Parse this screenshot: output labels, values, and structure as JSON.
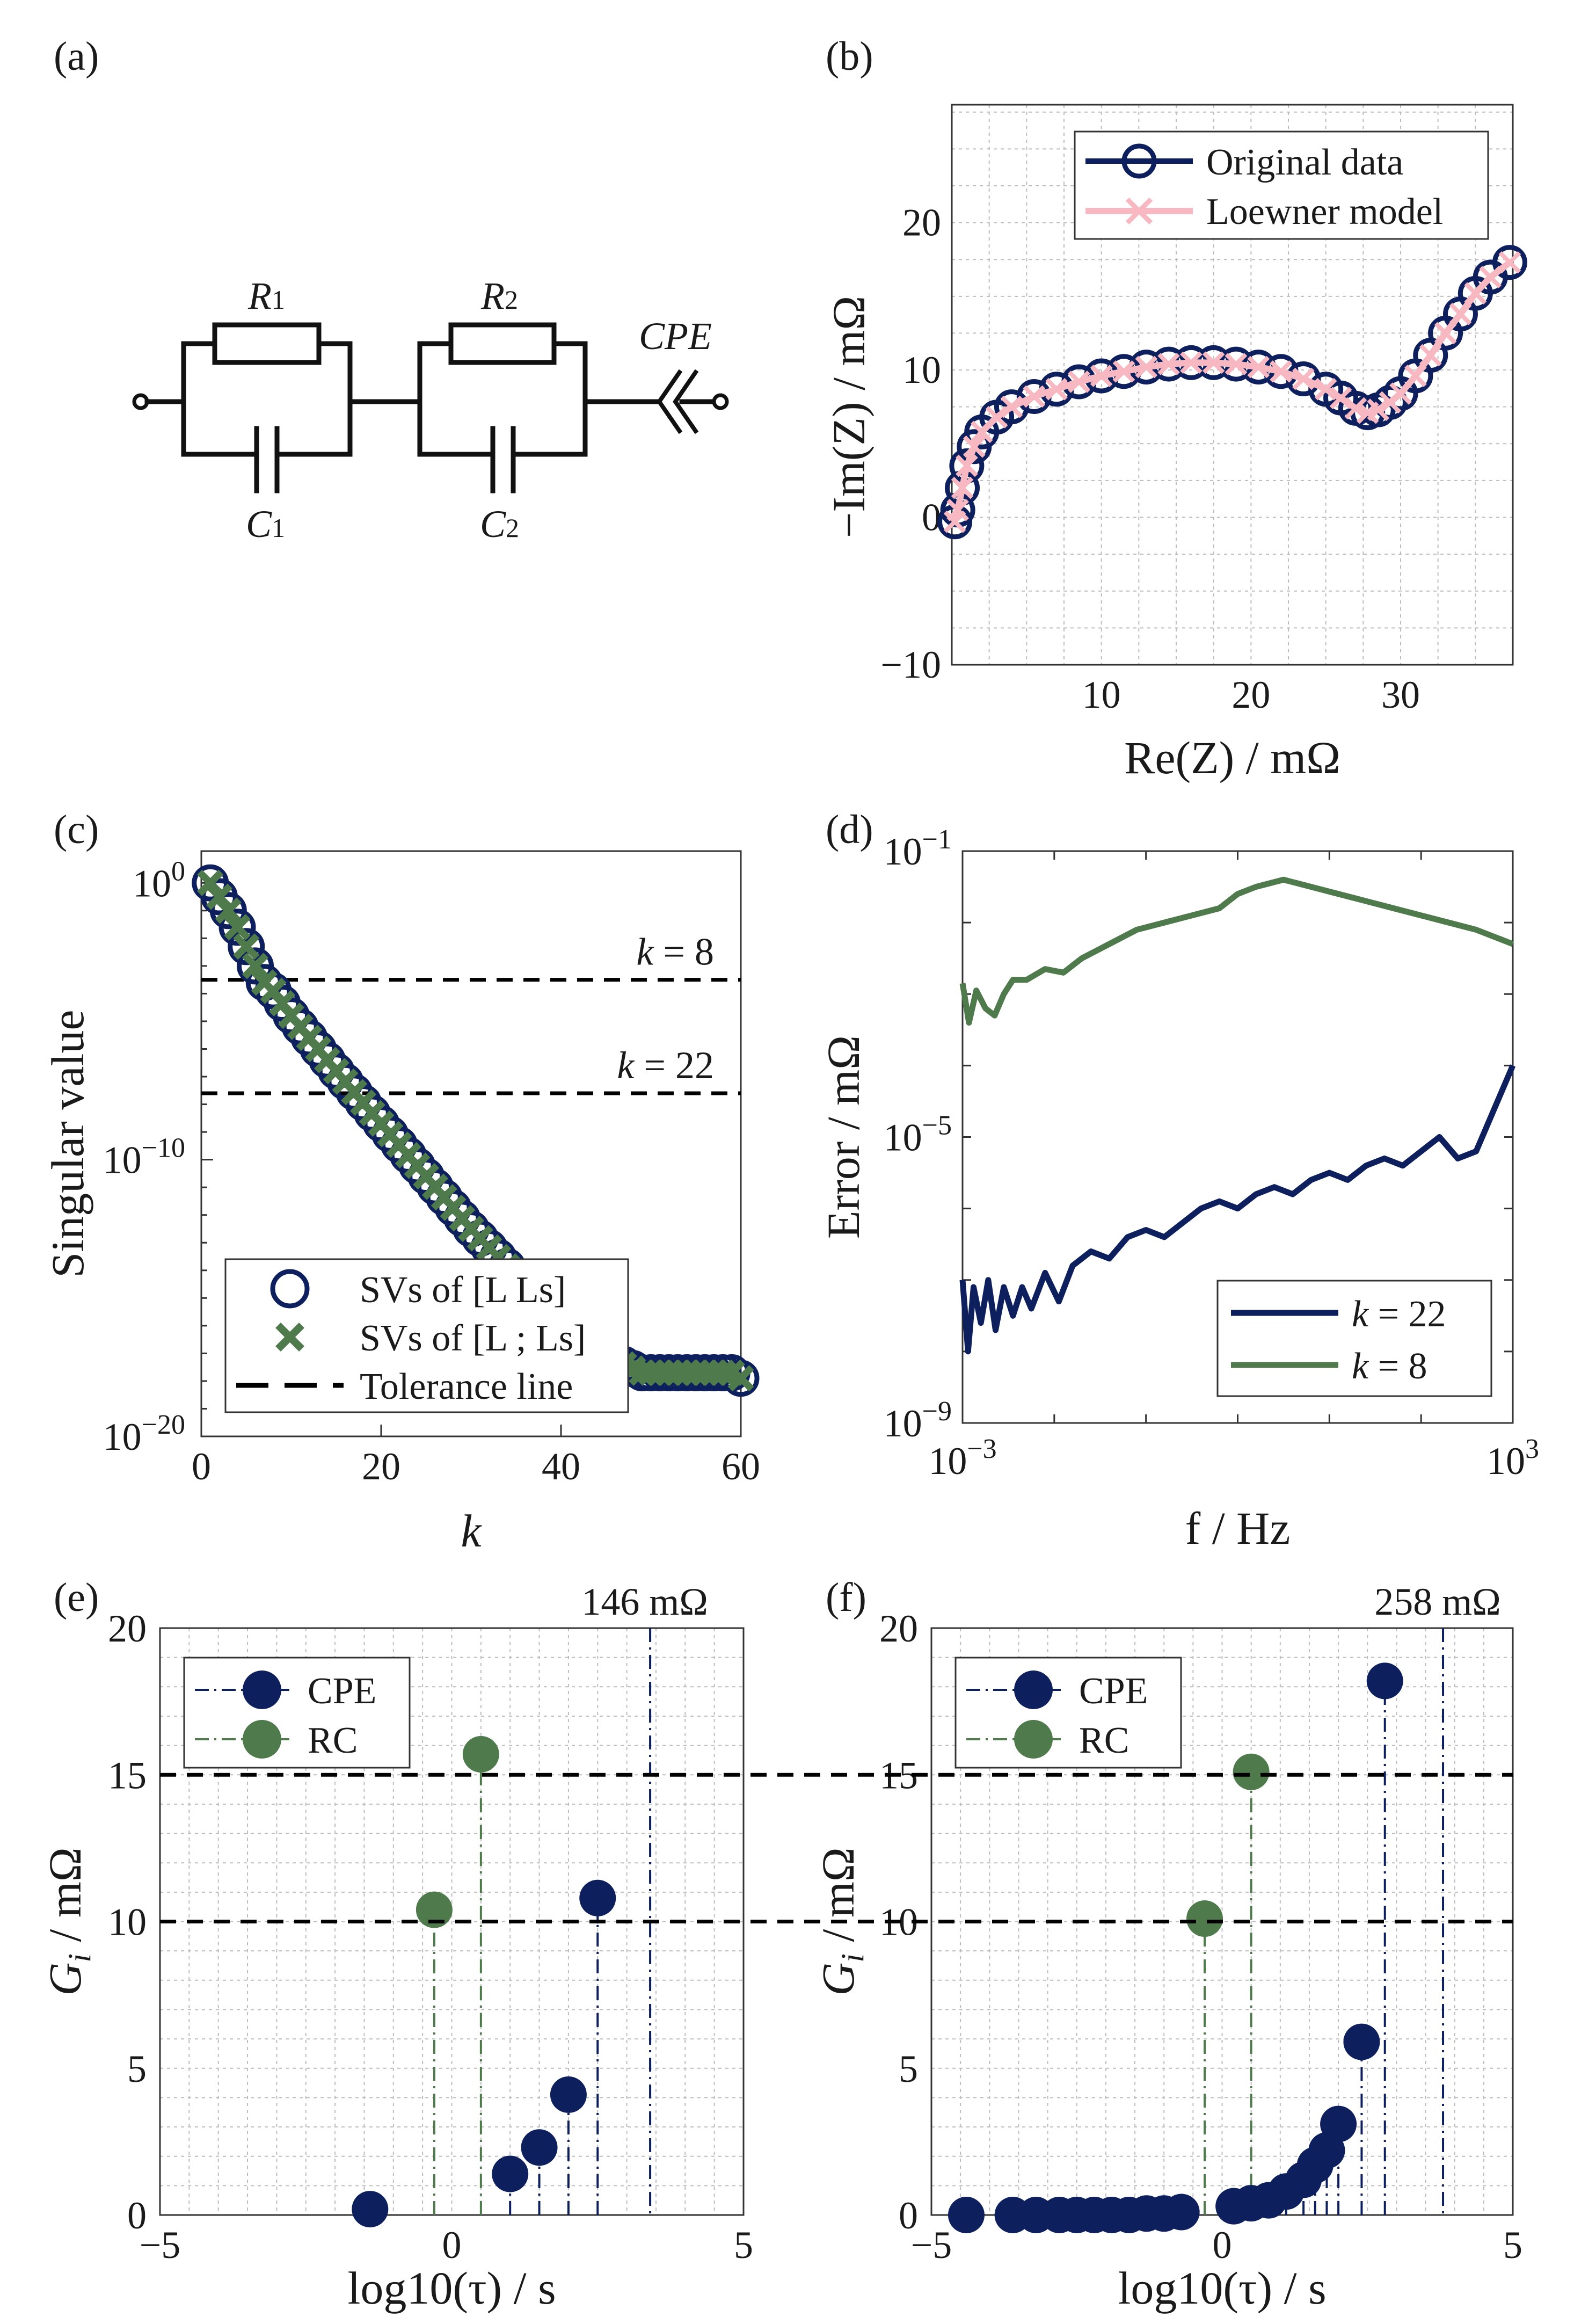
{
  "figure": {
    "panel_labels": [
      "(a)",
      "(b)",
      "(c)",
      "(d)",
      "(e)",
      "(f)"
    ],
    "circuit": {
      "labels": {
        "r1": "R",
        "r1_sub": "1",
        "r2": "R",
        "r2_sub": "2",
        "c1": "C",
        "c1_sub": "1",
        "c2": "C",
        "c2_sub": "2",
        "cpe": "CPE"
      }
    }
  },
  "chart_data": [
    {
      "panel": "(b)",
      "type": "line",
      "xlabel": "Re(Z) / mΩ",
      "ylabel": "−Im(Z) / mΩ",
      "xlim": [
        0,
        37.5
      ],
      "ylim": [
        -10,
        28
      ],
      "xticks": [
        10,
        20,
        30
      ],
      "yticks": [
        -10,
        0,
        10,
        20
      ],
      "grid": true,
      "legend": "top-right",
      "series": [
        {
          "name": "Original data",
          "color": "#0d1f5c",
          "marker": "circle",
          "x": [
            0.2,
            0.4,
            0.7,
            1.0,
            1.5,
            2.0,
            3.0,
            4.0,
            5.5,
            7.0,
            8.5,
            10.0,
            11.5,
            13.0,
            14.5,
            16.0,
            17.5,
            19.0,
            20.5,
            22.0,
            23.5,
            25.0,
            26.0,
            27.0,
            27.8,
            28.5,
            29.3,
            30.0,
            31.0,
            32.0,
            33.0,
            34.0,
            35.0,
            36.0,
            37.3
          ],
          "y": [
            -0.3,
            0.5,
            2.0,
            3.5,
            4.8,
            5.8,
            6.8,
            7.5,
            8.2,
            8.7,
            9.2,
            9.6,
            9.9,
            10.2,
            10.4,
            10.5,
            10.5,
            10.4,
            10.2,
            9.9,
            9.4,
            8.7,
            8.1,
            7.4,
            7.1,
            7.3,
            7.8,
            8.4,
            9.6,
            11.0,
            12.5,
            13.8,
            15.2,
            16.3,
            17.3
          ]
        },
        {
          "name": "Loewner model",
          "color": "#f7b8c2",
          "marker": "x",
          "x": [
            0.2,
            0.4,
            0.7,
            1.0,
            1.5,
            2.0,
            3.0,
            4.0,
            5.5,
            7.0,
            8.5,
            10.0,
            11.5,
            13.0,
            14.5,
            16.0,
            17.5,
            19.0,
            20.5,
            22.0,
            23.5,
            25.0,
            26.0,
            27.0,
            27.8,
            28.5,
            29.3,
            30.0,
            31.0,
            32.0,
            33.0,
            34.0,
            35.0,
            36.0,
            37.3
          ],
          "y": [
            -0.3,
            0.5,
            2.0,
            3.5,
            4.8,
            5.8,
            6.8,
            7.5,
            8.2,
            8.7,
            9.2,
            9.6,
            9.9,
            10.2,
            10.4,
            10.5,
            10.5,
            10.4,
            10.2,
            9.9,
            9.4,
            8.7,
            8.1,
            7.4,
            7.1,
            7.3,
            7.8,
            8.4,
            9.6,
            11.0,
            12.5,
            13.8,
            15.2,
            16.3,
            17.3
          ]
        }
      ]
    },
    {
      "panel": "(c)",
      "type": "scatter",
      "xlabel": "k",
      "ylabel": "Singular value",
      "xlim": [
        0,
        60
      ],
      "ylim_log10": [
        -20,
        1
      ],
      "yscale": "log",
      "xticks": [
        0,
        20,
        40,
        60
      ],
      "yticks": [
        "10^0",
        "10^-10",
        "10^-20"
      ],
      "legend": "bottom-left",
      "series": [
        {
          "name": "SVs of [L Ls]",
          "color": "#0d1f5c",
          "marker": "circle",
          "k_from": 1,
          "k_to": 60,
          "log10_points": [
            [
              1,
              0
            ],
            [
              2,
              -0.5
            ],
            [
              3,
              -1.0
            ],
            [
              4,
              -1.6
            ],
            [
              5,
              -2.3
            ],
            [
              6,
              -3.0
            ],
            [
              7,
              -3.6
            ],
            [
              8,
              -3.9
            ],
            [
              10,
              -4.8
            ],
            [
              15,
              -6.8
            ],
            [
              20,
              -8.7
            ],
            [
              25,
              -10.6
            ],
            [
              30,
              -12.5
            ],
            [
              35,
              -14.2
            ],
            [
              40,
              -15.8
            ],
            [
              45,
              -17.1
            ],
            [
              49,
              -17.7
            ],
            [
              59,
              -17.7
            ],
            [
              60,
              -17.9
            ]
          ]
        },
        {
          "name": "SVs of [L ; Ls]",
          "color": "#4e7a4c",
          "marker": "x",
          "k_from": 1,
          "k_to": 60,
          "log10_points": [
            [
              1,
              0
            ],
            [
              2,
              -0.5
            ],
            [
              3,
              -1.0
            ],
            [
              4,
              -1.6
            ],
            [
              5,
              -2.3
            ],
            [
              6,
              -3.0
            ],
            [
              7,
              -3.6
            ],
            [
              8,
              -3.9
            ],
            [
              10,
              -4.8
            ],
            [
              15,
              -6.8
            ],
            [
              20,
              -8.7
            ],
            [
              25,
              -10.6
            ],
            [
              30,
              -12.5
            ],
            [
              35,
              -14.2
            ],
            [
              40,
              -15.8
            ],
            [
              45,
              -17.1
            ],
            [
              49,
              -17.7
            ],
            [
              59,
              -17.7
            ],
            [
              60,
              -17.9
            ]
          ]
        },
        {
          "name": "Tolerance line",
          "color": "#000000",
          "style": "dashed",
          "log10_levels": [
            -3.5,
            -7.6
          ]
        }
      ],
      "annotations": [
        {
          "text": "k = 8",
          "italic_part": "k",
          "rest": " = 8"
        },
        {
          "text": "k = 22",
          "italic_part": "k",
          "rest": " = 22"
        }
      ]
    },
    {
      "panel": "(d)",
      "type": "line",
      "xlabel": "f / Hz",
      "ylabel": "Error / mΩ",
      "xscale": "log",
      "yscale": "log",
      "xlim_log10": [
        -3,
        3
      ],
      "ylim_log10": [
        -9,
        -1
      ],
      "xtick_labels": [
        {
          "base": "10",
          "exp": "−3"
        },
        {
          "base": "10",
          "exp": "3"
        }
      ],
      "ytick_labels": [
        {
          "base": "10",
          "exp": "−1"
        },
        {
          "base": "10",
          "exp": "−5"
        },
        {
          "base": "10",
          "exp": "−9"
        }
      ],
      "legend": "bottom-right",
      "series": [
        {
          "name": "k = 22",
          "color": "#0d1f5c",
          "log10_x": [
            -3.0,
            -2.94,
            -2.88,
            -2.8,
            -2.72,
            -2.64,
            -2.55,
            -2.45,
            -2.35,
            -2.25,
            -2.1,
            -1.95,
            -1.8,
            -1.6,
            -1.4,
            -1.2,
            -1.0,
            -0.8,
            -0.6,
            -0.4,
            -0.2,
            0.0,
            0.2,
            0.4,
            0.6,
            0.8,
            1.0,
            1.2,
            1.4,
            1.6,
            1.8,
            2.0,
            2.2,
            2.4,
            2.6,
            2.8,
            3.0
          ],
          "log10_y": [
            -7.0,
            -8.0,
            -7.1,
            -7.6,
            -7.0,
            -7.7,
            -7.1,
            -7.5,
            -7.1,
            -7.4,
            -6.9,
            -7.3,
            -6.8,
            -6.6,
            -6.7,
            -6.4,
            -6.3,
            -6.4,
            -6.2,
            -6.0,
            -5.9,
            -6.0,
            -5.8,
            -5.7,
            -5.8,
            -5.6,
            -5.5,
            -5.6,
            -5.4,
            -5.3,
            -5.4,
            -5.2,
            -5.0,
            -5.3,
            -5.2,
            -4.6,
            -4.0
          ]
        },
        {
          "name": "k = 8",
          "color": "#4e7a4c",
          "log10_x": [
            -3.0,
            -2.93,
            -2.85,
            -2.75,
            -2.65,
            -2.55,
            -2.45,
            -2.3,
            -2.1,
            -1.9,
            -1.7,
            -1.4,
            -1.1,
            -0.8,
            -0.5,
            -0.2,
            0.0,
            0.2,
            0.5,
            0.8,
            1.1,
            1.4,
            1.7,
            2.0,
            2.3,
            2.6,
            3.0
          ],
          "log10_y": [
            -2.85,
            -3.4,
            -2.95,
            -3.2,
            -3.3,
            -3.0,
            -2.8,
            -2.8,
            -2.65,
            -2.7,
            -2.5,
            -2.3,
            -2.1,
            -2.0,
            -1.9,
            -1.8,
            -1.6,
            -1.5,
            -1.4,
            -1.5,
            -1.6,
            -1.7,
            -1.8,
            -1.9,
            -2.0,
            -2.1,
            -2.3
          ]
        }
      ]
    },
    {
      "panel": "(e)",
      "type": "scatter",
      "xlabel": "log10(τ) / s",
      "ylabel": "G_i / mΩ",
      "xlim": [
        -5,
        5
      ],
      "ylim": [
        0,
        20
      ],
      "xticks": [
        -5,
        0,
        5
      ],
      "yticks": [
        0,
        5,
        10,
        15,
        20
      ],
      "grid": true,
      "legend": "top-left",
      "annotation": "146 mΩ",
      "annotation_tau": 3.4,
      "hlines": [
        10,
        15
      ],
      "series": [
        {
          "name": "CPE",
          "color": "#0d1f5c",
          "x": [
            -1.4,
            1.0,
            1.5,
            2.0,
            2.5
          ],
          "y": [
            0.2,
            1.4,
            2.3,
            4.1,
            10.8
          ]
        },
        {
          "name": "RC",
          "color": "#4e7a4c",
          "x": [
            -0.3,
            0.5
          ],
          "y": [
            10.4,
            15.7
          ]
        }
      ]
    },
    {
      "panel": "(f)",
      "type": "scatter",
      "xlabel": "log10(τ) / s",
      "ylabel": "G_i / mΩ",
      "xlim": [
        -5,
        5
      ],
      "ylim": [
        0,
        20
      ],
      "xticks": [
        -5,
        0,
        5
      ],
      "yticks": [
        0,
        5,
        10,
        15,
        20
      ],
      "grid": true,
      "legend": "top-left",
      "annotation": "258 mΩ",
      "annotation_tau": 3.8,
      "hlines": [
        10,
        15
      ],
      "series": [
        {
          "name": "CPE",
          "color": "#0d1f5c",
          "x": [
            -4.4,
            -3.6,
            -3.2,
            -2.8,
            -2.5,
            -2.2,
            -1.9,
            -1.6,
            -1.3,
            -1.0,
            -0.7,
            0.2,
            0.5,
            0.8,
            1.1,
            1.4,
            1.6,
            1.8,
            2.0,
            2.4,
            2.8
          ],
          "y": [
            0.0,
            0.0,
            0.0,
            0.0,
            0.0,
            0.0,
            0.0,
            0.0,
            0.05,
            0.05,
            0.1,
            0.3,
            0.4,
            0.5,
            0.8,
            1.2,
            1.7,
            2.2,
            3.1,
            5.9,
            18.2
          ]
        },
        {
          "name": "RC",
          "color": "#4e7a4c",
          "x": [
            -0.3,
            0.5
          ],
          "y": [
            10.1,
            15.1
          ]
        }
      ]
    }
  ]
}
